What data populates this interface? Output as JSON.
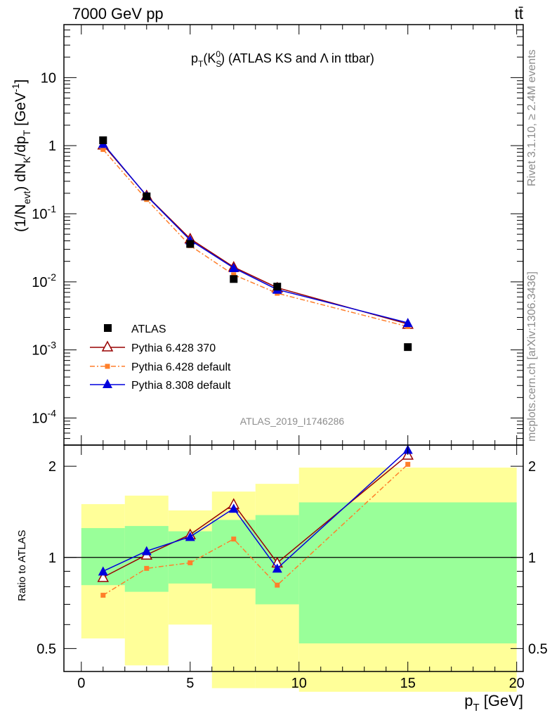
{
  "header": {
    "energy_label": "7000 GeV pp",
    "process_label": "tt̄"
  },
  "side_labels": {
    "rivet": "Rivet 3.1.10, ≥ 2.4M events",
    "mcplots": "mcplots.cern.ch [arXiv:1306.3436]"
  },
  "chart_data": [
    {
      "type": "scatter",
      "title": "p_T(K_S^0) (ATLAS KS and Λ in ttbar)",
      "analysis_label": "ATLAS_2019_I1746286",
      "xlabel": "p_T [GeV]",
      "ylabel": "(1/N_evt) dN_K/dp_T [GeV^-1]",
      "yscale": "log",
      "xlim": [
        -0.8,
        20.3
      ],
      "ylim": [
        4e-05,
        60
      ],
      "y_ticks": [
        {
          "value": 0.0001,
          "label": "10^-4"
        },
        {
          "value": 0.001,
          "label": "10^-3"
        },
        {
          "value": 0.01,
          "label": "10^-2"
        },
        {
          "value": 0.1,
          "label": "10^-1"
        },
        {
          "value": 1,
          "label": "1"
        },
        {
          "value": 10,
          "label": "10"
        }
      ],
      "legend_position": "lower-left",
      "series": [
        {
          "name": "ATLAS",
          "marker": "square",
          "color": "#000000",
          "line": "none",
          "x": [
            1,
            3,
            5,
            7,
            9,
            15
          ],
          "y": [
            1.2,
            0.18,
            0.036,
            0.011,
            0.0085,
            0.0011
          ]
        },
        {
          "name": "Pythia 6.428 370",
          "marker": "open-triangle",
          "color": "#990000",
          "line": "solid",
          "x": [
            1,
            3,
            5,
            7,
            9,
            15
          ],
          "y": [
            1.03,
            0.185,
            0.043,
            0.0165,
            0.0082,
            0.0024
          ]
        },
        {
          "name": "Pythia 6.428 default",
          "marker": "small-square",
          "color": "#ff7f2a",
          "line": "dashdot",
          "x": [
            1,
            3,
            5,
            7,
            9,
            15
          ],
          "y": [
            0.88,
            0.162,
            0.034,
            0.0127,
            0.0068,
            0.0022
          ]
        },
        {
          "name": "Pythia 8.308 default",
          "marker": "filled-triangle",
          "color": "#0000dd",
          "line": "solid",
          "x": [
            1,
            3,
            5,
            7,
            9,
            15
          ],
          "y": [
            1.07,
            0.183,
            0.041,
            0.016,
            0.0077,
            0.0025
          ]
        }
      ]
    },
    {
      "type": "line",
      "ylabel": "Ratio to ATLAS",
      "xlabel": "p_T [GeV]",
      "yscale": "log",
      "xlim": [
        -0.8,
        20.3
      ],
      "ylim": [
        0.42,
        2.35
      ],
      "x_ticks": [
        0,
        5,
        10,
        15,
        20
      ],
      "y_ticks": [
        0.5,
        1,
        2
      ],
      "reference_line": 1,
      "uncertainty_bands": [
        {
          "xlow": 0,
          "xhigh": 2,
          "inner": [
            0.81,
            1.25
          ],
          "outer": [
            0.54,
            1.5
          ]
        },
        {
          "xlow": 2,
          "xhigh": 4,
          "inner": [
            0.77,
            1.27
          ],
          "outer": [
            0.44,
            1.6
          ]
        },
        {
          "xlow": 4,
          "xhigh": 6,
          "inner": [
            0.82,
            1.22
          ],
          "outer": [
            0.6,
            1.43
          ]
        },
        {
          "xlow": 6,
          "xhigh": 8,
          "inner": [
            0.79,
            1.33
          ],
          "outer": [
            0.37,
            1.65
          ]
        },
        {
          "xlow": 8,
          "xhigh": 10,
          "inner": [
            0.7,
            1.38
          ],
          "outer": [
            0.37,
            1.75
          ]
        },
        {
          "xlow": 10,
          "xhigh": 20,
          "inner": [
            0.52,
            1.52
          ],
          "outer": [
            0.36,
            1.98
          ]
        }
      ],
      "series": [
        {
          "name": "Pythia 6.428 370",
          "marker": "open-triangle",
          "color": "#990000",
          "line": "solid",
          "x": [
            1,
            3,
            5,
            7,
            9,
            15
          ],
          "y": [
            0.86,
            1.02,
            1.19,
            1.5,
            0.96,
            2.18
          ]
        },
        {
          "name": "Pythia 6.428 default",
          "marker": "small-square",
          "color": "#ff7f2a",
          "line": "dashdot",
          "x": [
            1,
            3,
            5,
            7,
            9,
            15
          ],
          "y": [
            0.75,
            0.92,
            0.96,
            1.15,
            0.81,
            2.03
          ]
        },
        {
          "name": "Pythia 8.308 default",
          "marker": "filled-triangle",
          "color": "#0000dd",
          "line": "solid",
          "x": [
            1,
            3,
            5,
            7,
            9,
            15
          ],
          "y": [
            0.9,
            1.05,
            1.17,
            1.45,
            0.92,
            2.27
          ]
        }
      ]
    }
  ],
  "colors": {
    "inner_band": "#99ff99",
    "outer_band": "#ffff99"
  }
}
